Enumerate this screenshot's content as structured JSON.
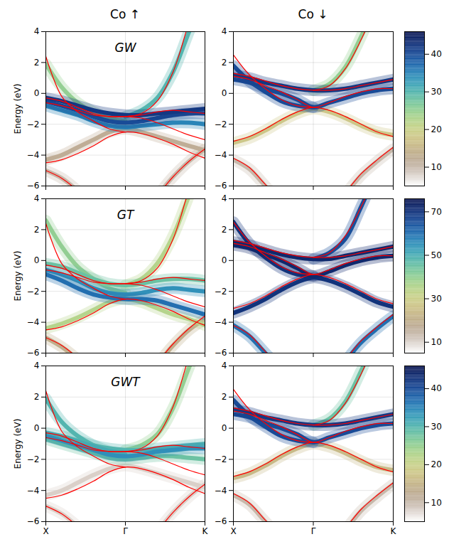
{
  "chart_data": {
    "type": "heatmap",
    "x": [
      0,
      0.1,
      0.2,
      0.3,
      0.4,
      0.5,
      0.6,
      0.7,
      0.8,
      0.9,
      1
    ],
    "xlim": [
      0,
      1
    ],
    "xticks": [
      {
        "value": 0,
        "label": "X"
      },
      {
        "value": 0.5,
        "label": "Γ"
      },
      {
        "value": 1,
        "label": "K"
      }
    ],
    "ylim": [
      -6,
      4
    ],
    "yticks": [
      -6,
      -4,
      -2,
      0,
      2,
      4
    ],
    "ylabel": "Energy (eV)",
    "grid": true,
    "columns": [
      {
        "title": "Co ↑",
        "color": "#ff0000",
        "reference_bands": [
          [
            -5.0,
            -5.5,
            -6.3,
            -7.2,
            -7.8,
            -8.0,
            -7.6,
            -6.6,
            -5.4,
            -4.4,
            -3.6
          ],
          [
            -4.5,
            -4.3,
            -3.9,
            -3.4,
            -2.8,
            -2.5,
            -2.6,
            -2.9,
            -3.3,
            -3.8,
            -4.2
          ],
          [
            -0.3,
            -0.5,
            -0.9,
            -1.3,
            -1.5,
            -1.5,
            -1.6,
            -1.9,
            -2.3,
            -2.7,
            -3.0
          ],
          [
            -0.6,
            -0.8,
            -1.1,
            -1.4,
            -1.5,
            -1.5,
            -1.4,
            -1.2,
            -1.1,
            -1.2,
            -1.3
          ],
          [
            2.4,
            -0.2,
            -1.2,
            -1.8,
            -2.3,
            -2.5,
            null,
            null,
            null,
            null,
            null
          ],
          [
            null,
            null,
            null,
            null,
            null,
            -1.5,
            -1.3,
            -0.5,
            1.4,
            4.6,
            7.5
          ]
        ]
      },
      {
        "title": "Co ↓",
        "color": "#ff0000",
        "reference_bands": [
          [
            -4.2,
            -4.8,
            -5.9,
            -6.9,
            -7.5,
            -7.7,
            -7.3,
            -6.4,
            -5.2,
            -4.3,
            -3.5
          ],
          [
            -3.1,
            -2.8,
            -2.3,
            -1.7,
            -1.2,
            -0.9,
            -1.1,
            -1.5,
            -2.0,
            -2.5,
            -2.8
          ],
          [
            1.1,
            0.9,
            0.5,
            0.1,
            -0.4,
            -0.9,
            -0.6,
            -0.2,
            0.1,
            0.3,
            0.3
          ],
          [
            1.3,
            1.1,
            0.8,
            0.5,
            0.3,
            0.2,
            0.2,
            0.3,
            0.5,
            0.7,
            0.9
          ],
          [
            2.5,
            1.2,
            0.3,
            -0.4,
            -0.8,
            -0.9,
            null,
            null,
            null,
            null,
            null
          ],
          [
            null,
            null,
            null,
            null,
            null,
            0.2,
            0.5,
            1.6,
            3.5,
            5.8,
            8.0
          ]
        ]
      }
    ],
    "rows": [
      {
        "title": "GW",
        "colorbar": {
          "lim": [
            5,
            46
          ],
          "ticks": [
            10,
            20,
            30,
            40
          ]
        },
        "panels": [
          {
            "bands": [
              {
                "energies": [
                  -5.0,
                  -5.5,
                  -6.3,
                  -7.2,
                  -7.8,
                  -8.0,
                  -7.6,
                  -6.6,
                  -5.4,
                  -4.4,
                  -3.6
                ],
                "intensity": 10
              },
              {
                "energies": [
                  -4.3,
                  -4.0,
                  -3.5,
                  -3.0,
                  -2.5,
                  -2.3,
                  -2.5,
                  -2.8,
                  -3.1,
                  -3.4,
                  -3.7
                ],
                "intensity": 12
              },
              {
                "energies": [
                  1.9,
                  0.4,
                  -0.6,
                  -1.2,
                  -1.6,
                  -1.8,
                  null,
                  null,
                  null,
                  null,
                  null
                ],
                "intensity": 25
              },
              {
                "energies": [
                  null,
                  null,
                  null,
                  null,
                  null,
                  -1.5,
                  -1.1,
                  -0.3,
                  1.4,
                  4.0,
                  6.5
                ],
                "intensity": 30
              },
              {
                "energies": [
                  -0.8,
                  -1.1,
                  -1.4,
                  -1.8,
                  -2.1,
                  -2.2,
                  -2.1,
                  -2.0,
                  -1.9,
                  -1.9,
                  -2.0
                ],
                "intensity": 35
              },
              {
                "energies": [
                  -0.5,
                  -0.8,
                  -1.1,
                  -1.5,
                  -1.8,
                  -1.9,
                  -1.8,
                  -1.6,
                  -1.4,
                  -1.3,
                  -1.3
                ],
                "intensity": 40
              },
              {
                "energies": [
                  -0.3,
                  -0.5,
                  -0.8,
                  -1.1,
                  -1.3,
                  -1.4,
                  -1.4,
                  -1.3,
                  -1.2,
                  -1.1,
                  -1.0
                ],
                "intensity": 42
              }
            ]
          },
          {
            "bands": [
              {
                "energies": [
                  -4.3,
                  -4.9,
                  -6.0,
                  -7.0,
                  -7.6,
                  -7.8,
                  -7.4,
                  -6.5,
                  -5.3,
                  -4.4,
                  -3.6
                ],
                "intensity": 10
              },
              {
                "energies": [
                  -3.2,
                  -2.9,
                  -2.4,
                  -1.8,
                  -1.3,
                  -1.0,
                  -1.2,
                  -1.6,
                  -2.1,
                  -2.5,
                  -2.7
                ],
                "intensity": 18
              },
              {
                "energies": [
                  null,
                  null,
                  null,
                  null,
                  null,
                  0.2,
                  0.6,
                  1.7,
                  3.7,
                  6.0,
                  8.0
                ],
                "intensity": 25
              },
              {
                "energies": [
                  1.8,
                  0.8,
                  0.1,
                  -0.5,
                  -0.8,
                  -0.9,
                  null,
                  null,
                  null,
                  null,
                  null
                ],
                "intensity": 40
              },
              {
                "energies": [
                  0.9,
                  0.7,
                  0.3,
                  0.0,
                  -0.4,
                  -0.9,
                  -0.6,
                  -0.3,
                  0.0,
                  0.2,
                  0.3
                ],
                "intensity": 40
              },
              {
                "energies": [
                  1.2,
                  1.0,
                  0.7,
                  0.5,
                  0.3,
                  0.2,
                  0.2,
                  0.3,
                  0.5,
                  0.7,
                  0.9
                ],
                "intensity": 42
              }
            ]
          }
        ]
      },
      {
        "title": "GT",
        "colorbar": {
          "lim": [
            5,
            76
          ],
          "ticks": [
            10,
            30,
            50,
            70
          ]
        },
        "panels": [
          {
            "bands": [
              {
                "energies": [
                  -5.0,
                  -5.6,
                  -6.4,
                  -7.3,
                  -7.9,
                  -8.1,
                  -7.7,
                  -6.7,
                  -5.5,
                  -4.5,
                  -3.8
                ],
                "intensity": 20
              },
              {
                "energies": [
                  -4.4,
                  -4.1,
                  -3.7,
                  -3.2,
                  -2.7,
                  -2.5,
                  -2.7,
                  -3.1,
                  -3.5,
                  -3.8,
                  -4.2
                ],
                "intensity": 35
              },
              {
                "energies": [
                  2.6,
                  0.9,
                  -0.4,
                  -1.2,
                  -1.8,
                  -2.1,
                  null,
                  null,
                  null,
                  null,
                  null
                ],
                "intensity": 40
              },
              {
                "energies": [
                  null,
                  null,
                  null,
                  null,
                  null,
                  -1.6,
                  -1.2,
                  -0.2,
                  1.6,
                  4.2,
                  6.8
                ],
                "intensity": 35
              },
              {
                "energies": [
                  -0.2,
                  -0.4,
                  -0.8,
                  -1.2,
                  -1.5,
                  -1.6,
                  -1.5,
                  -1.3,
                  -1.2,
                  -1.2,
                  -1.3
                ],
                "intensity": 45
              },
              {
                "energies": [
                  -0.6,
                  -0.9,
                  -1.3,
                  -1.8,
                  -2.1,
                  -2.2,
                  -2.1,
                  -1.9,
                  -1.8,
                  -1.9,
                  -2.0
                ],
                "intensity": 55
              },
              {
                "energies": [
                  -0.9,
                  -1.3,
                  -1.8,
                  -2.2,
                  -2.4,
                  -2.5,
                  -2.5,
                  -2.6,
                  -2.9,
                  -3.2,
                  -3.5
                ],
                "intensity": 60
              }
            ]
          },
          {
            "bands": [
              {
                "energies": [
                  -4.2,
                  -4.9,
                  -6.0,
                  -7.0,
                  -7.6,
                  -7.8,
                  -7.4,
                  -6.5,
                  -5.3,
                  -4.4,
                  -3.6
                ],
                "intensity": 60
              },
              {
                "energies": [
                  null,
                  null,
                  null,
                  null,
                  null,
                  0.1,
                  0.5,
                  1.4,
                  3.5,
                  5.8,
                  8.0
                ],
                "intensity": 65
              },
              {
                "energies": [
                  -3.4,
                  -3.0,
                  -2.5,
                  -1.9,
                  -1.4,
                  -1.1,
                  -1.3,
                  -1.7,
                  -2.2,
                  -2.7,
                  -3.0
                ],
                "intensity": 70
              },
              {
                "energies": [
                  2.5,
                  1.1,
                  0.2,
                  -0.5,
                  -0.9,
                  -1.0,
                  null,
                  null,
                  null,
                  null,
                  null
                ],
                "intensity": 70
              },
              {
                "energies": [
                  1.0,
                  0.8,
                  0.4,
                  0.0,
                  -0.5,
                  -1.0,
                  -0.7,
                  -0.3,
                  0.0,
                  0.2,
                  0.3
                ],
                "intensity": 72
              },
              {
                "energies": [
                  1.2,
                  1.0,
                  0.7,
                  0.4,
                  0.2,
                  0.1,
                  0.1,
                  0.3,
                  0.5,
                  0.7,
                  0.9
                ],
                "intensity": 72
              }
            ]
          }
        ]
      },
      {
        "title": "GWT",
        "colorbar": {
          "lim": [
            5,
            46
          ],
          "ticks": [
            10,
            20,
            30,
            40
          ]
        },
        "panels": [
          {
            "bands": [
              {
                "energies": [
                  -5.0,
                  -5.5,
                  -6.3,
                  -7.2,
                  -7.8,
                  -8.0,
                  -7.6,
                  -6.6,
                  -5.4,
                  -4.4,
                  -3.6
                ],
                "intensity": 8
              },
              {
                "energies": [
                  -4.3,
                  -4.0,
                  -3.5,
                  -3.0,
                  -2.6,
                  -2.4,
                  -2.6,
                  -2.9,
                  -3.2,
                  -3.5,
                  -3.8
                ],
                "intensity": 8
              },
              {
                "energies": [
                  null,
                  null,
                  null,
                  null,
                  null,
                  -1.4,
                  -1.1,
                  -0.4,
                  1.3,
                  3.9,
                  6.3
                ],
                "intensity": 25
              },
              {
                "energies": [
                  -0.7,
                  -1.0,
                  -1.3,
                  -1.6,
                  -1.9,
                  -2.0,
                  -1.9,
                  -1.8,
                  -1.8,
                  -1.9,
                  -2.0
                ],
                "intensity": 28
              },
              {
                "energies": [
                  1.9,
                  0.4,
                  -0.5,
                  -1.1,
                  -1.5,
                  -1.7,
                  null,
                  null,
                  null,
                  null,
                  null
                ],
                "intensity": 30
              },
              {
                "energies": [
                  -0.3,
                  -0.5,
                  -0.8,
                  -1.1,
                  -1.3,
                  -1.4,
                  -1.4,
                  -1.3,
                  -1.2,
                  -1.1,
                  -1.0
                ],
                "intensity": 30
              },
              {
                "energies": [
                  -0.5,
                  -0.8,
                  -1.1,
                  -1.4,
                  -1.7,
                  -1.8,
                  -1.7,
                  -1.5,
                  -1.4,
                  -1.3,
                  -1.3
                ],
                "intensity": 34
              }
            ]
          },
          {
            "bands": [
              {
                "energies": [
                  -4.3,
                  -4.9,
                  -6.0,
                  -7.0,
                  -7.6,
                  -7.8,
                  -7.4,
                  -6.5,
                  -5.3,
                  -4.4,
                  -3.6
                ],
                "intensity": 10
              },
              {
                "energies": [
                  -3.2,
                  -2.9,
                  -2.4,
                  -1.8,
                  -1.3,
                  -1.0,
                  -1.2,
                  -1.6,
                  -2.1,
                  -2.5,
                  -2.7
                ],
                "intensity": 16
              },
              {
                "energies": [
                  null,
                  null,
                  null,
                  null,
                  null,
                  0.2,
                  0.6,
                  1.7,
                  3.7,
                  6.0,
                  8.0
                ],
                "intensity": 28
              },
              {
                "energies": [
                  1.8,
                  0.8,
                  0.1,
                  -0.5,
                  -0.8,
                  -0.9,
                  null,
                  null,
                  null,
                  null,
                  null
                ],
                "intensity": 40
              },
              {
                "energies": [
                  0.9,
                  0.7,
                  0.3,
                  0.0,
                  -0.4,
                  -0.9,
                  -0.6,
                  -0.3,
                  0.0,
                  0.2,
                  0.3
                ],
                "intensity": 40
              },
              {
                "energies": [
                  1.2,
                  1.0,
                  0.7,
                  0.5,
                  0.3,
                  0.2,
                  0.2,
                  0.3,
                  0.5,
                  0.7,
                  0.9
                ],
                "intensity": 42
              }
            ]
          }
        ]
      }
    ]
  }
}
